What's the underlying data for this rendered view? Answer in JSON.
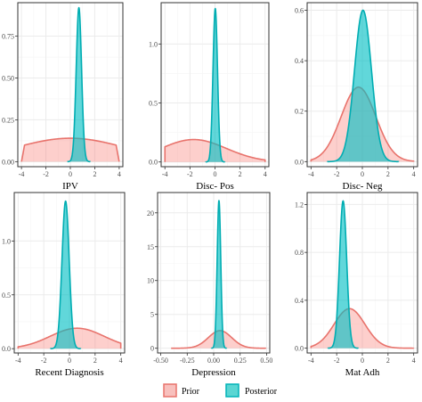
{
  "chart_data": [
    {
      "type": "area",
      "xlabel": "IPV",
      "xlim": [
        -4.3,
        4.3
      ],
      "ylim": [
        -0.03,
        0.95
      ],
      "x_ticks": [
        -4,
        -2,
        0,
        2,
        4
      ],
      "y_ticks": [
        0.0,
        0.25,
        0.5,
        0.75
      ],
      "y_tick_labels": [
        "0.00",
        "0.25",
        "0.50",
        "0.75"
      ],
      "series": [
        {
          "name": "Prior",
          "dist": "uniformish",
          "mean": 0,
          "sd": 4.5,
          "halfwidth": 4,
          "peak": 0.14
        },
        {
          "name": "Posterior",
          "dist": "normal",
          "mean": 0.7,
          "sd": 0.22,
          "peak": 0.92
        }
      ]
    },
    {
      "type": "area",
      "xlabel": "Disc- Pos",
      "xlim": [
        -4.3,
        4.3
      ],
      "ylim": [
        -0.04,
        1.35
      ],
      "x_ticks": [
        -4,
        -2,
        0,
        2,
        4
      ],
      "y_ticks": [
        0.0,
        0.5,
        1.0
      ],
      "y_tick_labels": [
        "0.0",
        "0.5",
        "1.0"
      ],
      "series": [
        {
          "name": "Prior",
          "dist": "normal",
          "mean": -1.7,
          "sd": 2.6,
          "peak": 0.19
        },
        {
          "name": "Posterior",
          "dist": "normal",
          "mean": 0.02,
          "sd": 0.18,
          "peak": 1.3
        }
      ]
    },
    {
      "type": "area",
      "xlabel": "Disc- Neg",
      "xlim": [
        -4.3,
        4.3
      ],
      "ylim": [
        -0.02,
        0.63
      ],
      "x_ticks": [
        -4,
        -2,
        0,
        2,
        4
      ],
      "y_ticks": [
        0.0,
        0.2,
        0.4,
        0.6
      ],
      "y_tick_labels": [
        "0.0",
        "0.2",
        "0.4",
        "0.6"
      ],
      "series": [
        {
          "name": "Prior",
          "dist": "normal",
          "mean": -0.3,
          "sd": 1.35,
          "peak": 0.295
        },
        {
          "name": "Posterior",
          "dist": "normal",
          "mean": 0.05,
          "sd": 0.66,
          "peak": 0.6
        }
      ]
    },
    {
      "type": "area",
      "xlabel": "Recent Diagnosis",
      "xlim": [
        -4.3,
        4.3
      ],
      "ylim": [
        -0.04,
        1.45
      ],
      "x_ticks": [
        -4,
        -2,
        0,
        2,
        4
      ],
      "y_ticks": [
        0.0,
        0.5,
        1.0
      ],
      "y_tick_labels": [
        "0.0",
        "0.5",
        "1.0"
      ],
      "series": [
        {
          "name": "Prior",
          "dist": "normal",
          "mean": 0.6,
          "sd": 2.1,
          "peak": 0.19
        },
        {
          "name": "Posterior",
          "dist": "normal",
          "mean": -0.3,
          "sd": 0.28,
          "peak": 1.37
        }
      ]
    },
    {
      "type": "area",
      "xlabel": "Depression",
      "xlim": [
        -0.53,
        0.53
      ],
      "ylim": [
        -0.7,
        23
      ],
      "x_ticks": [
        -0.5,
        -0.25,
        0,
        0.25,
        0.5
      ],
      "x_tick_labels": [
        "-0.50",
        "-0.25",
        "0.00",
        "0.25",
        "0.50"
      ],
      "y_ticks": [
        0,
        5,
        10,
        15,
        20
      ],
      "y_tick_labels": [
        "0",
        "5",
        "10",
        "15",
        "20"
      ],
      "series": [
        {
          "name": "Prior",
          "dist": "normal",
          "mean": 0.06,
          "sd": 0.11,
          "peak": 2.6
        },
        {
          "name": "Posterior",
          "dist": "normal",
          "mean": 0.05,
          "sd": 0.017,
          "peak": 21.8
        }
      ]
    },
    {
      "type": "area",
      "xlabel": "Mat Adh",
      "xlim": [
        -4.3,
        4.3
      ],
      "ylim": [
        -0.04,
        1.3
      ],
      "x_ticks": [
        -4,
        -2,
        0,
        2,
        4
      ],
      "y_ticks": [
        0.0,
        0.4,
        0.8,
        1.2
      ],
      "y_tick_labels": [
        "0.0",
        "0.4",
        "0.8",
        "1.2"
      ],
      "series": [
        {
          "name": "Prior",
          "dist": "normal",
          "mean": -1.0,
          "sd": 1.2,
          "peak": 0.33
        },
        {
          "name": "Posterior",
          "dist": "normal",
          "mean": -1.5,
          "sd": 0.28,
          "peak": 1.23
        }
      ]
    }
  ],
  "legend": {
    "placement": "bottom-center",
    "items": [
      {
        "label": "Prior",
        "fill": "#f8c0bd",
        "stroke": "#e8736c"
      },
      {
        "label": "Posterior",
        "fill": "#5ad6d3",
        "stroke": "#00b3b8"
      }
    ]
  },
  "colors": {
    "prior_fill": "#f8766d",
    "prior_stroke": "#e8736c",
    "posterior_fill": "#00bfc4",
    "posterior_stroke": "#00adb2",
    "grid_major": "#ebebeb",
    "grid_minor": "#f5f5f5",
    "panel_border": "#333333"
  }
}
